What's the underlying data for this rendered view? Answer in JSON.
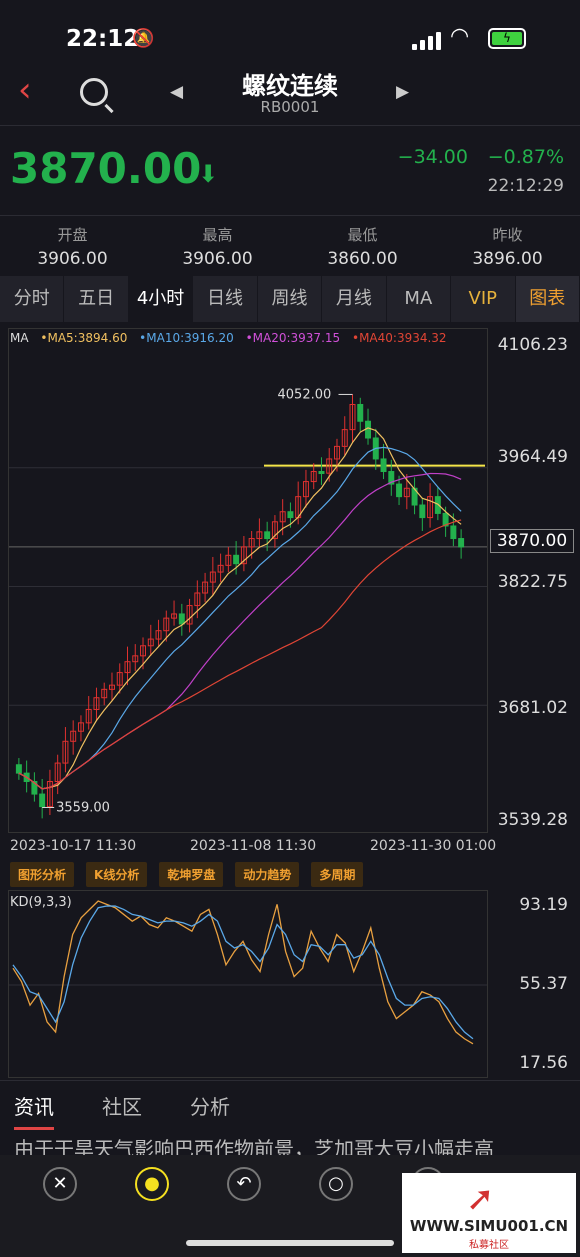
{
  "status": {
    "time": "22:12"
  },
  "nav": {
    "title": "螺纹连续",
    "code": "RB0001"
  },
  "quote": {
    "price": "3870.00",
    "change": "−34.00",
    "percent": "−0.87%",
    "time": "22:12:29",
    "color": "#23b14d"
  },
  "ohlc": [
    {
      "label": "开盘",
      "value": "3906.00"
    },
    {
      "label": "最高",
      "value": "3906.00"
    },
    {
      "label": "最低",
      "value": "3860.00"
    },
    {
      "label": "昨收",
      "value": "3896.00"
    }
  ],
  "tabs": [
    "分时",
    "五日",
    "4小时",
    "日线",
    "周线",
    "月线",
    "MA",
    "VIP",
    "图表"
  ],
  "ma_legend": {
    "name": "MA",
    "ma5": "•MA5:3894.60",
    "ma10": "•MA10:3916.20",
    "ma20": "•MA20:3937.15",
    "ma40": "•MA40:3934.32",
    "colors": {
      "ma5": "#f0c060",
      "ma10": "#5aa8e8",
      "ma20": "#c040c8",
      "ma40": "#e04535"
    }
  },
  "chart_data": {
    "type": "candlestick",
    "y_ticks": [
      "4106.23",
      "3964.49",
      "3822.75",
      "3681.02",
      "3539.28"
    ],
    "ylim": [
      3539.28,
      4106.23
    ],
    "current": "3870.00",
    "high_label": "4052.00",
    "low_label": "3559.00",
    "x_labels": [
      "2023-10-17 11:30",
      "2023-11-08 11:30",
      "2023-11-30 01:00"
    ],
    "close": [
      3600,
      3590,
      3575,
      3560,
      3590,
      3612,
      3638,
      3650,
      3660,
      3676,
      3690,
      3700,
      3705,
      3720,
      3733,
      3740,
      3752,
      3760,
      3770,
      3785,
      3790,
      3778,
      3800,
      3815,
      3828,
      3840,
      3848,
      3860,
      3850,
      3870,
      3880,
      3888,
      3880,
      3900,
      3912,
      3905,
      3930,
      3948,
      3960,
      3958,
      3975,
      3990,
      4010,
      4040,
      4020,
      4000,
      3975,
      3960,
      3945,
      3930,
      3940,
      3920,
      3905,
      3930,
      3910,
      3895,
      3880,
      3870
    ],
    "resistance": 3967
  },
  "tools": [
    "图形分析",
    "K线分析",
    "乾坤罗盘",
    "动力趋势",
    "多周期"
  ],
  "kd": {
    "label": "KD(9,3,3)",
    "ticks": [
      "93.19",
      "55.37",
      "17.56"
    ],
    "k": [
      60,
      52,
      38,
      45,
      28,
      22,
      55,
      80,
      90,
      95,
      100,
      98,
      96,
      92,
      88,
      91,
      86,
      84,
      90,
      88,
      85,
      82,
      92,
      95,
      80,
      62,
      70,
      76,
      65,
      58,
      80,
      98,
      70,
      55,
      60,
      82,
      72,
      64,
      80,
      75,
      58,
      70,
      84,
      60,
      40,
      30,
      34,
      38,
      46,
      44,
      40,
      30,
      22,
      18,
      15
    ],
    "d": [
      62,
      55,
      46,
      44,
      36,
      28,
      40,
      62,
      78,
      88,
      96,
      97,
      97,
      95,
      92,
      91,
      89,
      87,
      88,
      88,
      87,
      85,
      88,
      92,
      88,
      76,
      72,
      74,
      70,
      64,
      72,
      86,
      80,
      68,
      64,
      74,
      73,
      68,
      74,
      74,
      66,
      68,
      76,
      68,
      54,
      42,
      38,
      38,
      42,
      43,
      42,
      36,
      28,
      22,
      18
    ]
  },
  "news": {
    "tabs": [
      "资讯",
      "社区",
      "分析"
    ],
    "headline": "由于干旱天气影响巴西作物前景，芝加哥大豆小幅走高"
  },
  "watermark": {
    "url": "WWW.SIMU001.CN",
    "sub": "私募社区"
  }
}
